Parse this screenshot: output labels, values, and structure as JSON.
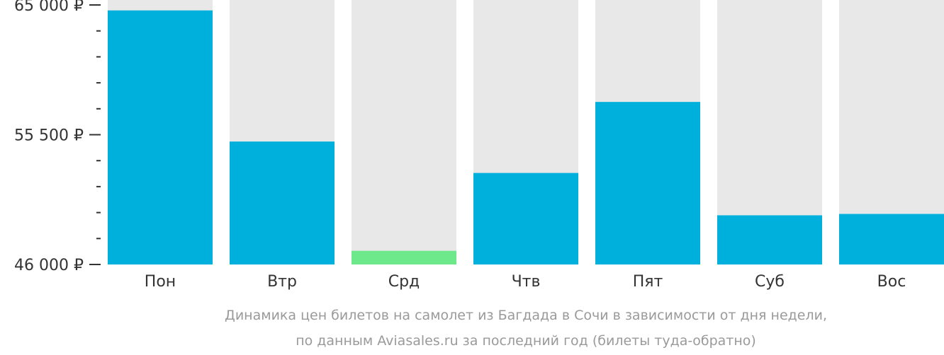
{
  "chart_data": {
    "type": "bar",
    "categories": [
      "Пон",
      "Втр",
      "Срд",
      "Чтв",
      "Пят",
      "Суб",
      "Вос"
    ],
    "values": [
      64600,
      55000,
      47000,
      52700,
      57900,
      49600,
      49700
    ],
    "ylim": [
      46000,
      65000
    ],
    "yticks": [
      {
        "value": 65000,
        "label": "65 000 ₽"
      },
      {
        "value": 55500,
        "label": "55 500 ₽"
      },
      {
        "value": 46000,
        "label": "46 000 ₽"
      }
    ],
    "minor_ticks_between": 4,
    "highlight_index": 2,
    "caption": [
      "Динамика цен билетов на самолет из Багдада в Сочи в зависимости от дня недели,",
      "по данным Aviasales.ru за последний год (билеты туда-обратно)"
    ],
    "colors": {
      "bar": "#00b0dc",
      "highlight": "#6de98b",
      "background_column": "#e8e8e8",
      "axis": "#333333"
    }
  }
}
